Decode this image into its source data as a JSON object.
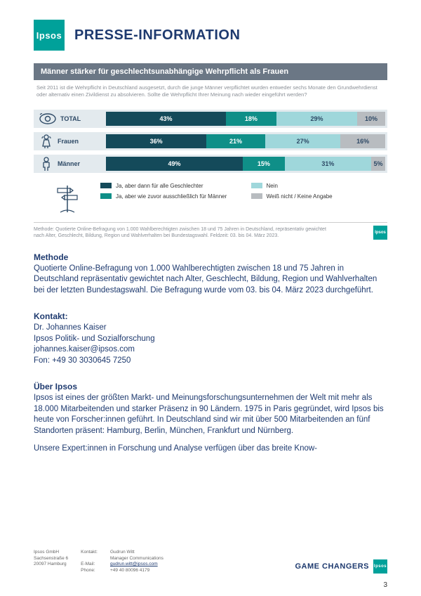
{
  "header": {
    "logo_text": "Ipsos",
    "title": "PRESSE-INFORMATION"
  },
  "chart": {
    "type": "stacked-bar-horizontal",
    "title": "Männer stärker für geschlechtsunabhängige Wehrpflicht als Frauen",
    "subtext": "Seit 2011 ist die Wehrpflicht in Deutschland ausgesetzt, durch die junge Männer verpflichtet wurden entweder sechs Monate den Grundwehrdienst oder alternativ einen Zivildienst zu absolvieren. Sollte die Wehrpflicht Ihrer Meinung nach wieder eingeführt werden?",
    "segment_colors": [
      "#144a5a",
      "#0f8f88",
      "#9fd7db",
      "#b8bcc0"
    ],
    "row_bg": "#e3eaee",
    "rows": [
      {
        "label": "TOTAL",
        "icon": "eye",
        "values": [
          43,
          18,
          29,
          10
        ]
      },
      {
        "label": "Frauen",
        "icon": "female",
        "values": [
          36,
          21,
          27,
          16
        ]
      },
      {
        "label": "Männer",
        "icon": "male",
        "values": [
          49,
          15,
          31,
          5
        ]
      }
    ],
    "legend": [
      {
        "color": "#144a5a",
        "label": "Ja, aber dann für alle Geschlechter"
      },
      {
        "color": "#9fd7db",
        "label": "Nein"
      },
      {
        "color": "#0f8f88",
        "label": "Ja, aber wie zuvor ausschließlich für Männer"
      },
      {
        "color": "#b8bcc0",
        "label": "Weiß nicht / Keine Angabe"
      }
    ],
    "method_note": "Methode: Quotierte Online-Befragung von 1.000 Wahlberechtigten zwischen 18 und 75 Jahren in Deutschland, repräsentativ gewichtet nach Alter, Geschlecht, Bildung, Region und Wahlverhalten bei Bundestagswahl. Feldzeit: 03. bis 04. März 2023."
  },
  "sections": {
    "method_h": "Methode",
    "method_body": "Quotierte Online-Befragung von 1.000 Wahlberechtigten zwischen 18 und 75 Jahren in Deutschland repräsentativ gewichtet nach Alter, Geschlecht, Bildung, Region und Wahlverhalten bei der letzten Bundestagswahl. Die Befragung wurde vom 03. bis 04. März 2023 durchgeführt.",
    "contact_h": "Kontakt:",
    "contact_name": "Dr. Johannes Kaiser",
    "contact_dept": "Ipsos Politik- und Sozialforschung",
    "contact_mail": "johannes.kaiser@ipsos.com",
    "contact_phone": "Fon: +49 30 3030645 7250",
    "about_h": "Über Ipsos",
    "about_p1": "Ipsos ist eines der größten Markt- und Meinungsforschungsunternehmen der Welt mit mehr als 18.000 Mitarbeitenden und starker Präsenz in 90 Ländern. 1975 in Paris gegründet, wird Ipsos bis heute von Forscher:innen geführt. In Deutschland sind wir mit über 500 Mitarbeitenden an fünf Standorten präsent: Hamburg, Berlin, München, Frankfurt und Nürnberg.",
    "about_p2": "Unsere Expert:innen in Forschung und Analyse verfügen über das breite Know-"
  },
  "footer": {
    "col1_l1": "Ipsos GmbH",
    "col1_l2": "Sachsenstraße 6",
    "col1_l3": "20097 Hamburg",
    "col2_l1": "Kontakt:",
    "col2_l2": "E-Mail:",
    "col2_l3": "Phone:",
    "col3_l1": "Gudrun Witt",
    "col3_l2": "Manager Communications",
    "col3_l3": "gudrun.witt@ipsos.com",
    "col3_l4": "+49 40 80096 4179",
    "tagline": "GAME CHANGERS",
    "page_number": "3"
  }
}
